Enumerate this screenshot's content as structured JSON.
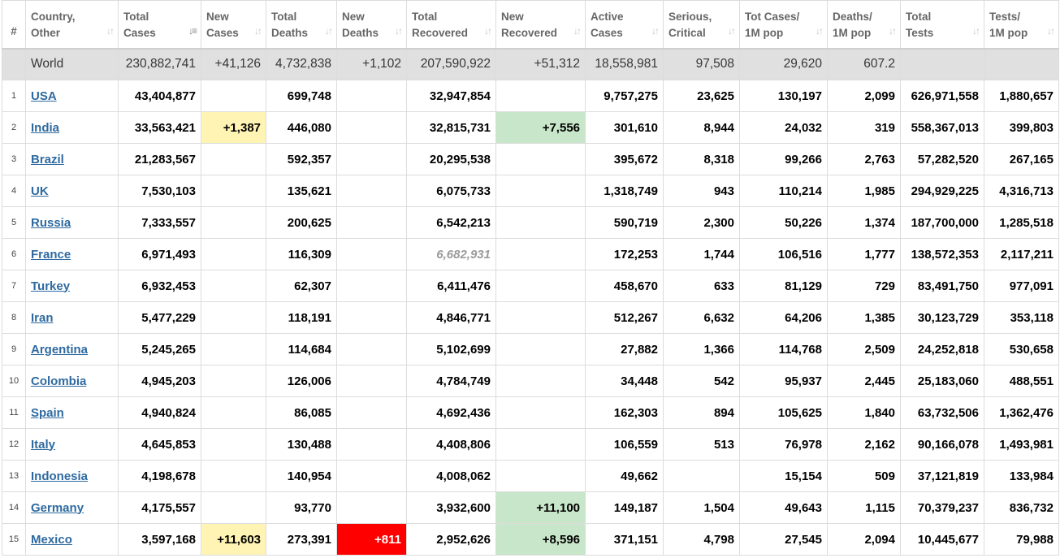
{
  "headers": [
    {
      "l1": "#",
      "l2": ""
    },
    {
      "l1": "Country,",
      "l2": "Other"
    },
    {
      "l1": "Total",
      "l2": "Cases"
    },
    {
      "l1": "New",
      "l2": "Cases"
    },
    {
      "l1": "Total",
      "l2": "Deaths"
    },
    {
      "l1": "New",
      "l2": "Deaths"
    },
    {
      "l1": "Total",
      "l2": "Recovered"
    },
    {
      "l1": "New",
      "l2": "Recovered"
    },
    {
      "l1": "Active",
      "l2": "Cases"
    },
    {
      "l1": "Serious,",
      "l2": "Critical"
    },
    {
      "l1": "Tot Cases/",
      "l2": "1M pop"
    },
    {
      "l1": "Deaths/",
      "l2": "1M pop"
    },
    {
      "l1": "Total",
      "l2": "Tests"
    },
    {
      "l1": "Tests/",
      "l2": "1M pop"
    }
  ],
  "sort_icon": "sort-arrows-icon",
  "sorted_column": "Total Cases",
  "colors": {
    "new_cases_bg": "#fff4b3",
    "new_deaths_bg": "#ff0000",
    "new_recovered_bg": "#c8e6c9",
    "link": "#2e6aa0",
    "world_row_bg": "#e0e0e0"
  },
  "world": {
    "country": "World",
    "total_cases": "230,882,741",
    "new_cases": "+41,126",
    "total_deaths": "4,732,838",
    "new_deaths": "+1,102",
    "total_recovered": "207,590,922",
    "new_recovered": "+51,312",
    "active_cases": "18,558,981",
    "serious": "97,508",
    "cases_per_m": "29,620",
    "deaths_per_m": "607.2",
    "total_tests": "",
    "tests_per_m": ""
  },
  "rows": [
    {
      "idx": "1",
      "country": "USA",
      "total_cases": "43,404,877",
      "new_cases": "",
      "total_deaths": "699,748",
      "new_deaths": "",
      "total_recovered": "32,947,854",
      "new_recovered": "",
      "active_cases": "9,757,275",
      "serious": "23,625",
      "cases_per_m": "130,197",
      "deaths_per_m": "2,099",
      "total_tests": "626,971,558",
      "tests_per_m": "1,880,657"
    },
    {
      "idx": "2",
      "country": "India",
      "total_cases": "33,563,421",
      "new_cases": "+1,387",
      "total_deaths": "446,080",
      "new_deaths": "",
      "total_recovered": "32,815,731",
      "new_recovered": "+7,556",
      "active_cases": "301,610",
      "serious": "8,944",
      "cases_per_m": "24,032",
      "deaths_per_m": "319",
      "total_tests": "558,367,013",
      "tests_per_m": "399,803"
    },
    {
      "idx": "3",
      "country": "Brazil",
      "total_cases": "21,283,567",
      "new_cases": "",
      "total_deaths": "592,357",
      "new_deaths": "",
      "total_recovered": "20,295,538",
      "new_recovered": "",
      "active_cases": "395,672",
      "serious": "8,318",
      "cases_per_m": "99,266",
      "deaths_per_m": "2,763",
      "total_tests": "57,282,520",
      "tests_per_m": "267,165"
    },
    {
      "idx": "4",
      "country": "UK",
      "total_cases": "7,530,103",
      "new_cases": "",
      "total_deaths": "135,621",
      "new_deaths": "",
      "total_recovered": "6,075,733",
      "new_recovered": "",
      "active_cases": "1,318,749",
      "serious": "943",
      "cases_per_m": "110,214",
      "deaths_per_m": "1,985",
      "total_tests": "294,929,225",
      "tests_per_m": "4,316,713"
    },
    {
      "idx": "5",
      "country": "Russia",
      "total_cases": "7,333,557",
      "new_cases": "",
      "total_deaths": "200,625",
      "new_deaths": "",
      "total_recovered": "6,542,213",
      "new_recovered": "",
      "active_cases": "590,719",
      "serious": "2,300",
      "cases_per_m": "50,226",
      "deaths_per_m": "1,374",
      "total_tests": "187,700,000",
      "tests_per_m": "1,285,518"
    },
    {
      "idx": "6",
      "country": "France",
      "total_cases": "6,971,493",
      "new_cases": "",
      "total_deaths": "116,309",
      "new_deaths": "",
      "total_recovered": "6,682,931",
      "new_recovered": "",
      "active_cases": "172,253",
      "serious": "1,744",
      "cases_per_m": "106,516",
      "deaths_per_m": "1,777",
      "total_tests": "138,572,353",
      "tests_per_m": "2,117,211",
      "recovered_estimated": true
    },
    {
      "idx": "7",
      "country": "Turkey",
      "total_cases": "6,932,453",
      "new_cases": "",
      "total_deaths": "62,307",
      "new_deaths": "",
      "total_recovered": "6,411,476",
      "new_recovered": "",
      "active_cases": "458,670",
      "serious": "633",
      "cases_per_m": "81,129",
      "deaths_per_m": "729",
      "total_tests": "83,491,750",
      "tests_per_m": "977,091"
    },
    {
      "idx": "8",
      "country": "Iran",
      "total_cases": "5,477,229",
      "new_cases": "",
      "total_deaths": "118,191",
      "new_deaths": "",
      "total_recovered": "4,846,771",
      "new_recovered": "",
      "active_cases": "512,267",
      "serious": "6,632",
      "cases_per_m": "64,206",
      "deaths_per_m": "1,385",
      "total_tests": "30,123,729",
      "tests_per_m": "353,118"
    },
    {
      "idx": "9",
      "country": "Argentina",
      "total_cases": "5,245,265",
      "new_cases": "",
      "total_deaths": "114,684",
      "new_deaths": "",
      "total_recovered": "5,102,699",
      "new_recovered": "",
      "active_cases": "27,882",
      "serious": "1,366",
      "cases_per_m": "114,768",
      "deaths_per_m": "2,509",
      "total_tests": "24,252,818",
      "tests_per_m": "530,658"
    },
    {
      "idx": "10",
      "country": "Colombia",
      "total_cases": "4,945,203",
      "new_cases": "",
      "total_deaths": "126,006",
      "new_deaths": "",
      "total_recovered": "4,784,749",
      "new_recovered": "",
      "active_cases": "34,448",
      "serious": "542",
      "cases_per_m": "95,937",
      "deaths_per_m": "2,445",
      "total_tests": "25,183,060",
      "tests_per_m": "488,551"
    },
    {
      "idx": "11",
      "country": "Spain",
      "total_cases": "4,940,824",
      "new_cases": "",
      "total_deaths": "86,085",
      "new_deaths": "",
      "total_recovered": "4,692,436",
      "new_recovered": "",
      "active_cases": "162,303",
      "serious": "894",
      "cases_per_m": "105,625",
      "deaths_per_m": "1,840",
      "total_tests": "63,732,506",
      "tests_per_m": "1,362,476"
    },
    {
      "idx": "12",
      "country": "Italy",
      "total_cases": "4,645,853",
      "new_cases": "",
      "total_deaths": "130,488",
      "new_deaths": "",
      "total_recovered": "4,408,806",
      "new_recovered": "",
      "active_cases": "106,559",
      "serious": "513",
      "cases_per_m": "76,978",
      "deaths_per_m": "2,162",
      "total_tests": "90,166,078",
      "tests_per_m": "1,493,981"
    },
    {
      "idx": "13",
      "country": "Indonesia",
      "total_cases": "4,198,678",
      "new_cases": "",
      "total_deaths": "140,954",
      "new_deaths": "",
      "total_recovered": "4,008,062",
      "new_recovered": "",
      "active_cases": "49,662",
      "serious": "",
      "cases_per_m": "15,154",
      "deaths_per_m": "509",
      "total_tests": "37,121,819",
      "tests_per_m": "133,984"
    },
    {
      "idx": "14",
      "country": "Germany",
      "total_cases": "4,175,557",
      "new_cases": "",
      "total_deaths": "93,770",
      "new_deaths": "",
      "total_recovered": "3,932,600",
      "new_recovered": "+11,100",
      "active_cases": "149,187",
      "serious": "1,504",
      "cases_per_m": "49,643",
      "deaths_per_m": "1,115",
      "total_tests": "70,379,237",
      "tests_per_m": "836,732"
    },
    {
      "idx": "15",
      "country": "Mexico",
      "total_cases": "3,597,168",
      "new_cases": "+11,603",
      "total_deaths": "273,391",
      "new_deaths": "+811",
      "total_recovered": "2,952,626",
      "new_recovered": "+8,596",
      "active_cases": "371,151",
      "serious": "4,798",
      "cases_per_m": "27,545",
      "deaths_per_m": "2,094",
      "total_tests": "10,445,677",
      "tests_per_m": "79,988"
    }
  ]
}
